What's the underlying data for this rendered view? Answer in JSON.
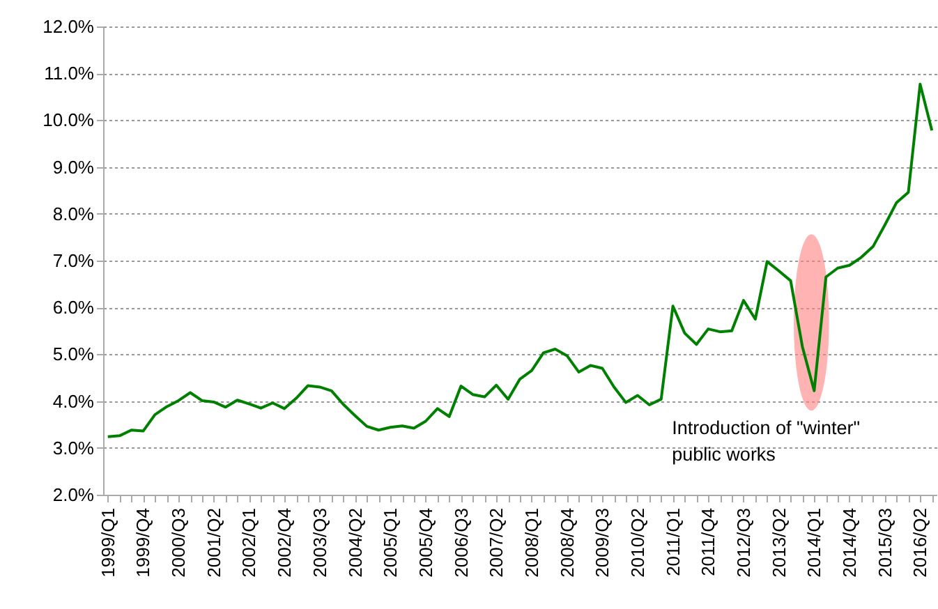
{
  "chart_data": {
    "type": "line",
    "categories": [
      "1999/Q1",
      null,
      null,
      "1999/Q4",
      null,
      null,
      "2000/Q3",
      null,
      null,
      "2001/Q2",
      null,
      null,
      "2002/Q1",
      null,
      null,
      "2002/Q4",
      null,
      null,
      "2003/Q3",
      null,
      null,
      "2004/Q2",
      null,
      null,
      "2005/Q1",
      null,
      null,
      "2005/Q4",
      null,
      null,
      "2006/Q3",
      null,
      null,
      "2007/Q2",
      null,
      null,
      "2008/Q1",
      null,
      null,
      "2008/Q4",
      null,
      null,
      "2009/Q3",
      null,
      null,
      "2010/Q2",
      null,
      null,
      "2011/Q1",
      null,
      null,
      "2011/Q4",
      null,
      null,
      "2012/Q3",
      null,
      null,
      "2013/Q2",
      null,
      null,
      "2014/Q1",
      null,
      null,
      "2014/Q4",
      null,
      null,
      "2015/Q3",
      null,
      null,
      "2016/Q2",
      null
    ],
    "series": [
      {
        "color": "#008000",
        "values": [
          3.24,
          3.26,
          3.38,
          3.36,
          3.71,
          3.88,
          4.01,
          4.18,
          4.01,
          3.98,
          3.87,
          4.02,
          3.94,
          3.85,
          3.96,
          3.84,
          4.06,
          4.33,
          4.3,
          4.22,
          3.93,
          3.69,
          3.46,
          3.38,
          3.44,
          3.47,
          3.42,
          3.57,
          3.84,
          3.67,
          4.32,
          4.14,
          4.09,
          4.34,
          4.04,
          4.47,
          4.65,
          5.03,
          5.11,
          4.97,
          4.62,
          4.76,
          4.7,
          4.3,
          3.97,
          4.12,
          3.92,
          4.04,
          6.03,
          5.45,
          5.21,
          5.54,
          5.48,
          5.5,
          6.15,
          5.75,
          6.98,
          6.78,
          6.57,
          5.16,
          4.22,
          6.65,
          6.84,
          6.9,
          7.07,
          7.3,
          7.76,
          8.24,
          8.46,
          10.77,
          9.78
        ]
      }
    ],
    "ylim": [
      2,
      12
    ],
    "yticks": [
      {
        "value": 2,
        "label": "2.0%"
      },
      {
        "value": 3,
        "label": "3.0%"
      },
      {
        "value": 4,
        "label": "4.0%"
      },
      {
        "value": 5,
        "label": "5.0%"
      },
      {
        "value": 6,
        "label": "6.0%"
      },
      {
        "value": 7,
        "label": "7.0%"
      },
      {
        "value": 8,
        "label": "8.0%"
      },
      {
        "value": 9,
        "label": "9.0%"
      },
      {
        "value": 10,
        "label": "10.0%"
      },
      {
        "value": 11,
        "label": "11.0%"
      },
      {
        "value": 12,
        "label": "12.0%"
      }
    ],
    "grid": "y",
    "marker": "none",
    "line_style": "solid",
    "annotations": [
      {
        "text": "Introduction of \"winter\" public works",
        "x": "2014/Q1",
        "y": 4.22
      }
    ]
  }
}
